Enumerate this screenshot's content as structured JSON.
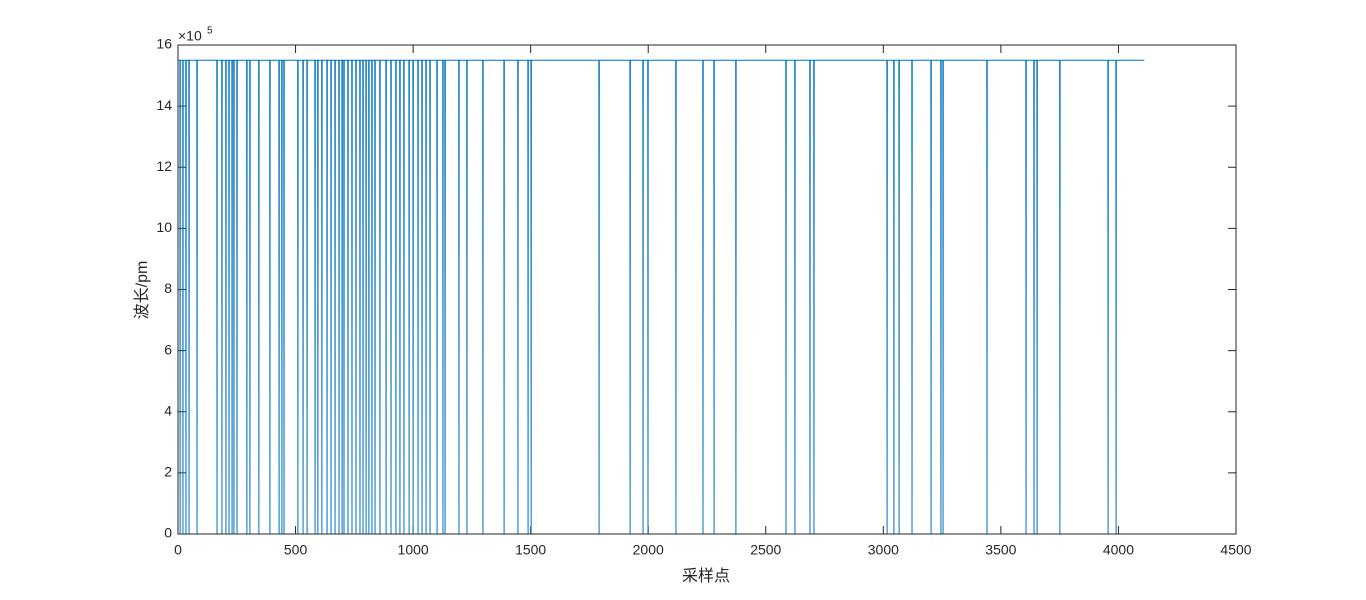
{
  "chart_data": {
    "type": "line",
    "x_label": "采样点",
    "y_label": "波长/pm",
    "y_exponent_base": "×10",
    "y_exponent": "5",
    "xlim": [
      0,
      4500
    ],
    "xticks": [
      0,
      500,
      1000,
      1500,
      2000,
      2500,
      3000,
      3500,
      4000,
      4500
    ],
    "ylim": [
      0,
      16
    ],
    "yticks": [
      0,
      2,
      4,
      6,
      8,
      10,
      12,
      14,
      16
    ],
    "grid": false,
    "series": [
      {
        "color": "#0072bd",
        "x": [
          1,
          8,
          9,
          10,
          20,
          21,
          22,
          33,
          34,
          35,
          46,
          47,
          48,
          80,
          81,
          82,
          165,
          166,
          167,
          186,
          187,
          188,
          203,
          204,
          205,
          216,
          217,
          218,
          229,
          230,
          231,
          237,
          238,
          239,
          250,
          251,
          252,
          292,
          293,
          294,
          305,
          306,
          307,
          343,
          344,
          345,
          390,
          391,
          392,
          429,
          430,
          431,
          441,
          442,
          443,
          450,
          451,
          452,
          509,
          510,
          511,
          531,
          532,
          533,
          548,
          549,
          550,
          582,
          583,
          584,
          594,
          595,
          596,
          611,
          612,
          613,
          633,
          634,
          635,
          650,
          651,
          652,
          667,
          668,
          669,
          684,
          685,
          686,
          697,
          698,
          699,
          705,
          706,
          707,
          722,
          723,
          724,
          739,
          740,
          741,
          756,
          757,
          758,
          773,
          774,
          775,
          786,
          787,
          788,
          799,
          800,
          801,
          811,
          812,
          813,
          824,
          825,
          826,
          837,
          838,
          839,
          858,
          859,
          860,
          884,
          885,
          886,
          905,
          906,
          907,
          926,
          927,
          928,
          943,
          944,
          945,
          960,
          961,
          962,
          982,
          983,
          984,
          999,
          1000,
          1001,
          1020,
          1021,
          1022,
          1037,
          1038,
          1039,
          1054,
          1055,
          1056,
          1071,
          1072,
          1073,
          1101,
          1102,
          1103,
          1126,
          1127,
          1128,
          1135,
          1136,
          1137,
          1194,
          1195,
          1196,
          1228,
          1229,
          1230,
          1296,
          1297,
          1298,
          1386,
          1387,
          1388,
          1445,
          1446,
          1447,
          1488,
          1489,
          1490,
          1501,
          1502,
          1503,
          1790,
          1791,
          1792,
          1922,
          1923,
          1924,
          1977,
          1978,
          1979,
          1998,
          1999,
          2000,
          2117,
          2118,
          2119,
          2232,
          2233,
          2234,
          2279,
          2280,
          2281,
          2372,
          2373,
          2374,
          2585,
          2586,
          2587,
          2623,
          2624,
          2625,
          2687,
          2688,
          2689,
          2704,
          2705,
          2706,
          3015,
          3016,
          3017,
          3044,
          3045,
          3046,
          3066,
          3067,
          3068,
          3121,
          3122,
          3123,
          3202,
          3203,
          3204,
          3244,
          3245,
          3246,
          3253,
          3254,
          3255,
          3440,
          3441,
          3442,
          3606,
          3607,
          3608,
          3640,
          3641,
          3642,
          3653,
          3654,
          3655,
          3750,
          3751,
          3752,
          3955,
          3956,
          3957,
          3989,
          3990,
          3991,
          4110
        ],
        "values": [
          15.5,
          15.5,
          0,
          15.5,
          15.5,
          0,
          15.5,
          15.5,
          0,
          15.5,
          15.5,
          0,
          15.5,
          15.5,
          0,
          15.5,
          15.5,
          0,
          15.5,
          15.5,
          0,
          15.5,
          15.5,
          0,
          15.5,
          15.5,
          0,
          15.5,
          15.5,
          0,
          15.5,
          15.5,
          0,
          15.5,
          15.5,
          0,
          15.5,
          15.5,
          0,
          15.5,
          15.5,
          0,
          15.5,
          15.5,
          0,
          15.5,
          15.5,
          0,
          15.5,
          15.5,
          0,
          15.5,
          15.5,
          0,
          15.5,
          15.5,
          0,
          15.5,
          15.5,
          0,
          15.5,
          15.5,
          0,
          15.5,
          15.5,
          0,
          15.5,
          15.5,
          0,
          15.5,
          15.5,
          0,
          15.5,
          15.5,
          0,
          15.5,
          15.5,
          0,
          15.5,
          15.5,
          0,
          15.5,
          15.5,
          0,
          15.5,
          15.5,
          0,
          15.5,
          15.5,
          0,
          15.5,
          15.5,
          0,
          15.5,
          15.5,
          0,
          15.5,
          15.5,
          0,
          15.5,
          15.5,
          0,
          15.5,
          15.5,
          0,
          15.5,
          15.5,
          0,
          15.5,
          15.5,
          0,
          15.5,
          15.5,
          0,
          15.5,
          15.5,
          0,
          15.5,
          15.5,
          0,
          15.5,
          15.5,
          0,
          15.5,
          15.5,
          0,
          15.5,
          15.5,
          0,
          15.5,
          15.5,
          0,
          15.5,
          15.5,
          0,
          15.5,
          15.5,
          0,
          15.5,
          15.5,
          0,
          15.5,
          15.5,
          0,
          15.5,
          15.5,
          0,
          15.5,
          15.5,
          0,
          15.5,
          15.5,
          0,
          15.5,
          15.5,
          0,
          15.5,
          15.5,
          0,
          15.5,
          15.5,
          0,
          15.5,
          15.5,
          0,
          15.5,
          15.5,
          0,
          15.5,
          15.5,
          0,
          15.5,
          15.5,
          0,
          15.5,
          15.5,
          0,
          15.5,
          15.5,
          0,
          15.5,
          15.5,
          0,
          15.5,
          15.5,
          0,
          15.5,
          15.5,
          0,
          15.5,
          15.5,
          0,
          15.5,
          15.5,
          0,
          15.5,
          15.5,
          0,
          15.5,
          15.5,
          0,
          15.5,
          15.5,
          0,
          15.5,
          15.5,
          0,
          15.5,
          15.5,
          0,
          15.5,
          15.5,
          0,
          15.5,
          15.5,
          0,
          15.5,
          15.5,
          0,
          15.5,
          15.5,
          0,
          15.5,
          15.5,
          0,
          15.5,
          15.5,
          0,
          15.5,
          15.5,
          0,
          15.5,
          15.5,
          0,
          15.5,
          15.5,
          0,
          15.5,
          15.5,
          0,
          15.5,
          15.5,
          0,
          15.5,
          15.5,
          0,
          15.5,
          15.5,
          0,
          15.5,
          15.5,
          0,
          15.5,
          15.5,
          0,
          15.5,
          15.5,
          0,
          15.5,
          15.5,
          0,
          15.5,
          15.5,
          0,
          15.5,
          15.5
        ]
      }
    ]
  }
}
